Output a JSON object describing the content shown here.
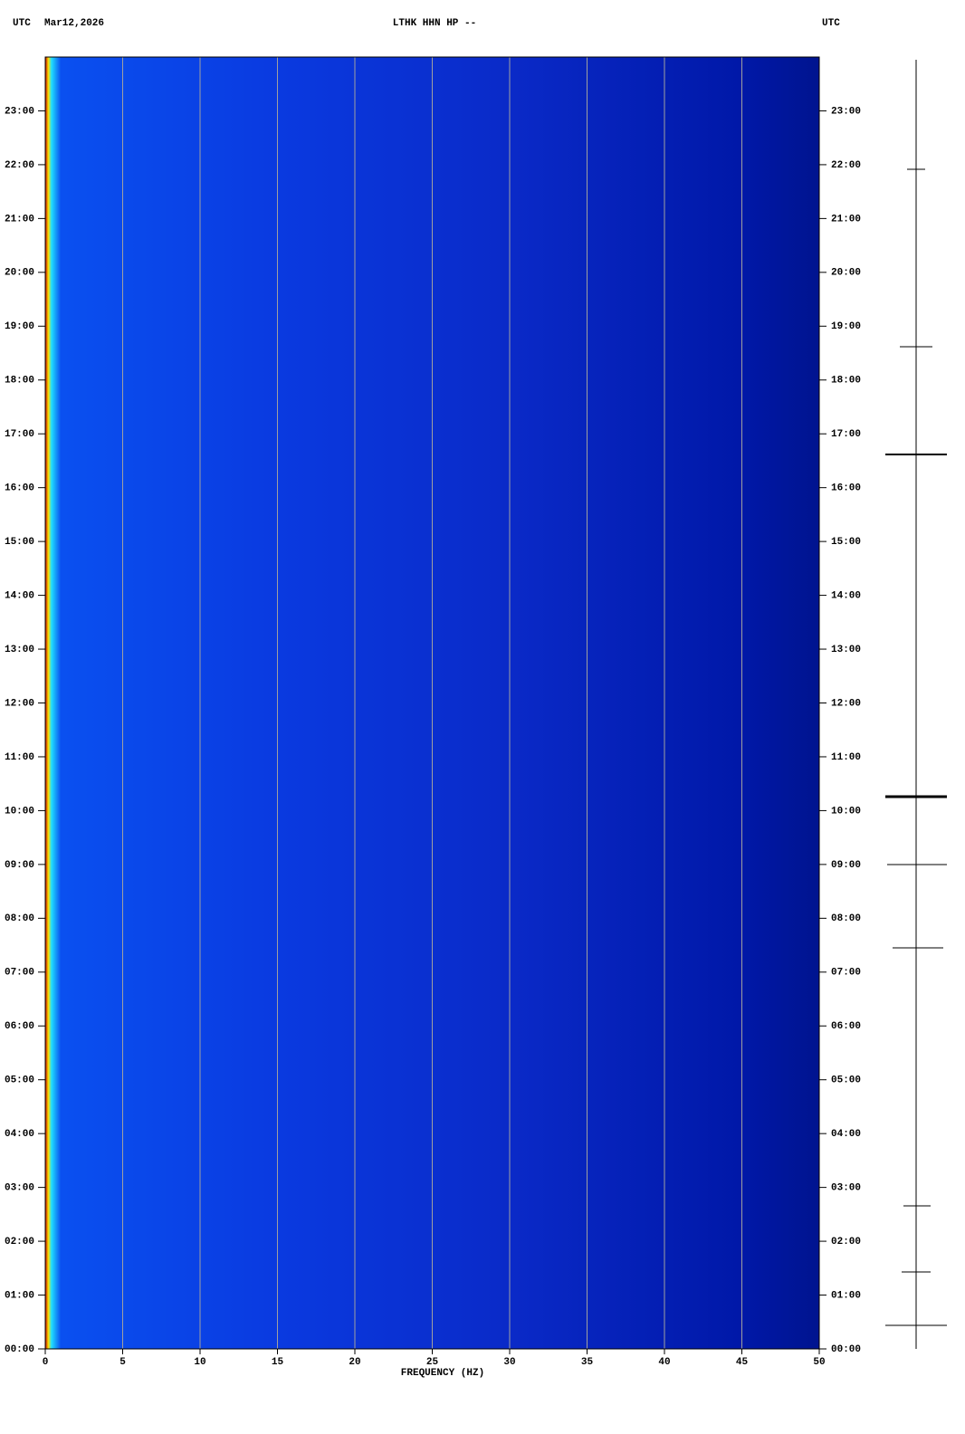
{
  "chart_data": {
    "type": "spectrogram",
    "title": "LTHK HHN HP --",
    "date": "Mar12,2026",
    "timezone_left": "UTC",
    "timezone_right": "UTC",
    "xlabel": "FREQUENCY (HZ)",
    "xlim": [
      0,
      50
    ],
    "xticks": [
      0,
      5,
      10,
      15,
      20,
      25,
      30,
      35,
      40,
      45,
      50
    ],
    "ylim": [
      0,
      24
    ],
    "yticks": [
      {
        "value": 0,
        "label": "00:00"
      },
      {
        "value": 1,
        "label": "01:00"
      },
      {
        "value": 2,
        "label": "02:00"
      },
      {
        "value": 3,
        "label": "03:00"
      },
      {
        "value": 4,
        "label": "04:00"
      },
      {
        "value": 5,
        "label": "05:00"
      },
      {
        "value": 6,
        "label": "06:00"
      },
      {
        "value": 7,
        "label": "07:00"
      },
      {
        "value": 8,
        "label": "08:00"
      },
      {
        "value": 9,
        "label": "09:00"
      },
      {
        "value": 10,
        "label": "10:00"
      },
      {
        "value": 11,
        "label": "11:00"
      },
      {
        "value": 12,
        "label": "12:00"
      },
      {
        "value": 13,
        "label": "13:00"
      },
      {
        "value": 14,
        "label": "14:00"
      },
      {
        "value": 15,
        "label": "15:00"
      },
      {
        "value": 16,
        "label": "16:00"
      },
      {
        "value": 17,
        "label": "17:00"
      },
      {
        "value": 18,
        "label": "18:00"
      },
      {
        "value": 19,
        "label": "19:00"
      },
      {
        "value": 20,
        "label": "20:00"
      },
      {
        "value": 21,
        "label": "21:00"
      },
      {
        "value": 22,
        "label": "22:00"
      },
      {
        "value": 23,
        "label": "23:00"
      }
    ],
    "grid": true,
    "grid_color": "#a0a0a0"
  }
}
